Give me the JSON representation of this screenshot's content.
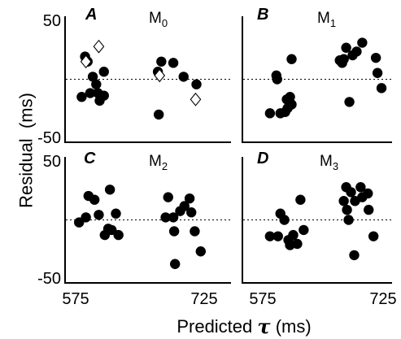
{
  "chart_data": {
    "type": "scatter",
    "xlabel": "Predicted",
    "xlabel_symbol": "τ",
    "xlabel_unit": "(ms)",
    "ylabel": "Residual  (ms)",
    "xlim": [
      575,
      725
    ],
    "ylim": [
      -50,
      50
    ],
    "x_ticks": [
      "575",
      "725"
    ],
    "y_ticks": [
      "50",
      "-50"
    ],
    "reference_line": {
      "y": 0,
      "style": "dotted"
    },
    "panels": [
      {
        "letter": "A",
        "model": "M",
        "model_sub": "0",
        "filled_points": [
          {
            "x": 582,
            "y": -14
          },
          {
            "x": 586,
            "y": 18
          },
          {
            "x": 589,
            "y": 14
          },
          {
            "x": 592,
            "y": -11
          },
          {
            "x": 595,
            "y": 2
          },
          {
            "x": 599,
            "y": -4
          },
          {
            "x": 601,
            "y": -11
          },
          {
            "x": 603,
            "y": -17
          },
          {
            "x": 608,
            "y": -13
          },
          {
            "x": 608,
            "y": 6
          },
          {
            "x": 672,
            "y": -28
          },
          {
            "x": 675,
            "y": 14
          },
          {
            "x": 671,
            "y": 6
          },
          {
            "x": 689,
            "y": 13
          },
          {
            "x": 701,
            "y": 2
          },
          {
            "x": 716,
            "y": -4
          }
        ],
        "open_points": [
          {
            "x": 587,
            "y": 14
          },
          {
            "x": 602,
            "y": 26
          },
          {
            "x": 673,
            "y": 3
          },
          {
            "x": 715,
            "y": -16
          }
        ]
      },
      {
        "letter": "B",
        "model": "M",
        "model_sub": "1",
        "filled_points": [
          {
            "x": 584,
            "y": -27
          },
          {
            "x": 592,
            "y": 3
          },
          {
            "x": 593,
            "y": 0
          },
          {
            "x": 597,
            "y": -27
          },
          {
            "x": 603,
            "y": -26
          },
          {
            "x": 605,
            "y": -16
          },
          {
            "x": 606,
            "y": -23
          },
          {
            "x": 609,
            "y": -14
          },
          {
            "x": 611,
            "y": -20
          },
          {
            "x": 611,
            "y": 16
          },
          {
            "x": 671,
            "y": 15
          },
          {
            "x": 674,
            "y": 13
          },
          {
            "x": 679,
            "y": 25
          },
          {
            "x": 676,
            "y": 16
          },
          {
            "x": 683,
            "y": -18
          },
          {
            "x": 687,
            "y": 19
          },
          {
            "x": 692,
            "y": 22
          },
          {
            "x": 699,
            "y": 29
          },
          {
            "x": 716,
            "y": 17
          },
          {
            "x": 718,
            "y": 5
          },
          {
            "x": 723,
            "y": -7
          }
        ],
        "open_points": []
      },
      {
        "letter": "C",
        "model": "M",
        "model_sub": "2",
        "filled_points": [
          {
            "x": 579,
            "y": -2
          },
          {
            "x": 587,
            "y": 2
          },
          {
            "x": 590,
            "y": 19
          },
          {
            "x": 597,
            "y": 16
          },
          {
            "x": 602,
            "y": 4
          },
          {
            "x": 609,
            "y": -12
          },
          {
            "x": 613,
            "y": -7
          },
          {
            "x": 615,
            "y": 24
          },
          {
            "x": 617,
            "y": -8
          },
          {
            "x": 622,
            "y": 5
          },
          {
            "x": 625,
            "y": -12
          },
          {
            "x": 680,
            "y": 2
          },
          {
            "x": 683,
            "y": 18
          },
          {
            "x": 689,
            "y": 2
          },
          {
            "x": 690,
            "y": -9
          },
          {
            "x": 691,
            "y": -35
          },
          {
            "x": 697,
            "y": 7
          },
          {
            "x": 702,
            "y": 11
          },
          {
            "x": 708,
            "y": 17
          },
          {
            "x": 710,
            "y": 6
          },
          {
            "x": 714,
            "y": -9
          },
          {
            "x": 721,
            "y": -25
          }
        ],
        "open_points": []
      },
      {
        "letter": "D",
        "model": "M",
        "model_sub": "3",
        "filled_points": [
          {
            "x": 584,
            "y": -13
          },
          {
            "x": 594,
            "y": -13
          },
          {
            "x": 597,
            "y": 5
          },
          {
            "x": 602,
            "y": 0
          },
          {
            "x": 607,
            "y": -16
          },
          {
            "x": 609,
            "y": -20
          },
          {
            "x": 613,
            "y": -12
          },
          {
            "x": 618,
            "y": -19
          },
          {
            "x": 622,
            "y": 16
          },
          {
            "x": 626,
            "y": -8
          },
          {
            "x": 676,
            "y": 15
          },
          {
            "x": 679,
            "y": 26
          },
          {
            "x": 680,
            "y": 8
          },
          {
            "x": 682,
            "y": 0
          },
          {
            "x": 685,
            "y": 22
          },
          {
            "x": 689,
            "y": -28
          },
          {
            "x": 690,
            "y": 15
          },
          {
            "x": 697,
            "y": 26
          },
          {
            "x": 699,
            "y": 18
          },
          {
            "x": 706,
            "y": 21
          },
          {
            "x": 707,
            "y": 8
          },
          {
            "x": 713,
            "y": -13
          }
        ],
        "open_points": []
      }
    ]
  }
}
